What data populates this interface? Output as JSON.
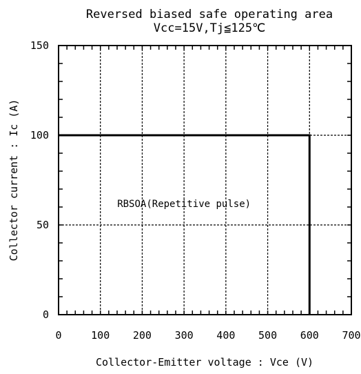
{
  "chart_data": {
    "type": "line",
    "title": "Reversed biased safe operating area",
    "subtitle": "Vcc=15V,Tj≦125℃",
    "xlabel": "Collector-Emitter voltage : Vce (V)",
    "ylabel": "Collector current : Ic (A)",
    "xlim": [
      0,
      700
    ],
    "ylim": [
      0,
      150
    ],
    "x_ticks": [
      0,
      100,
      200,
      300,
      400,
      500,
      600,
      700
    ],
    "y_ticks": [
      0,
      50,
      100,
      150
    ],
    "x_tick_labels": [
      "0",
      "100",
      "200",
      "300",
      "400",
      "500",
      "600",
      "700"
    ],
    "y_tick_labels": [
      "0",
      "50",
      "100",
      "150"
    ],
    "grid": true,
    "series": [
      {
        "name": "",
        "x": [
          0,
          600,
          600
        ],
        "y": [
          100,
          100,
          0
        ]
      }
    ],
    "annotations": [
      {
        "text": "RBSOA(Repetitive pulse)",
        "x": 300,
        "y": 60
      }
    ]
  }
}
